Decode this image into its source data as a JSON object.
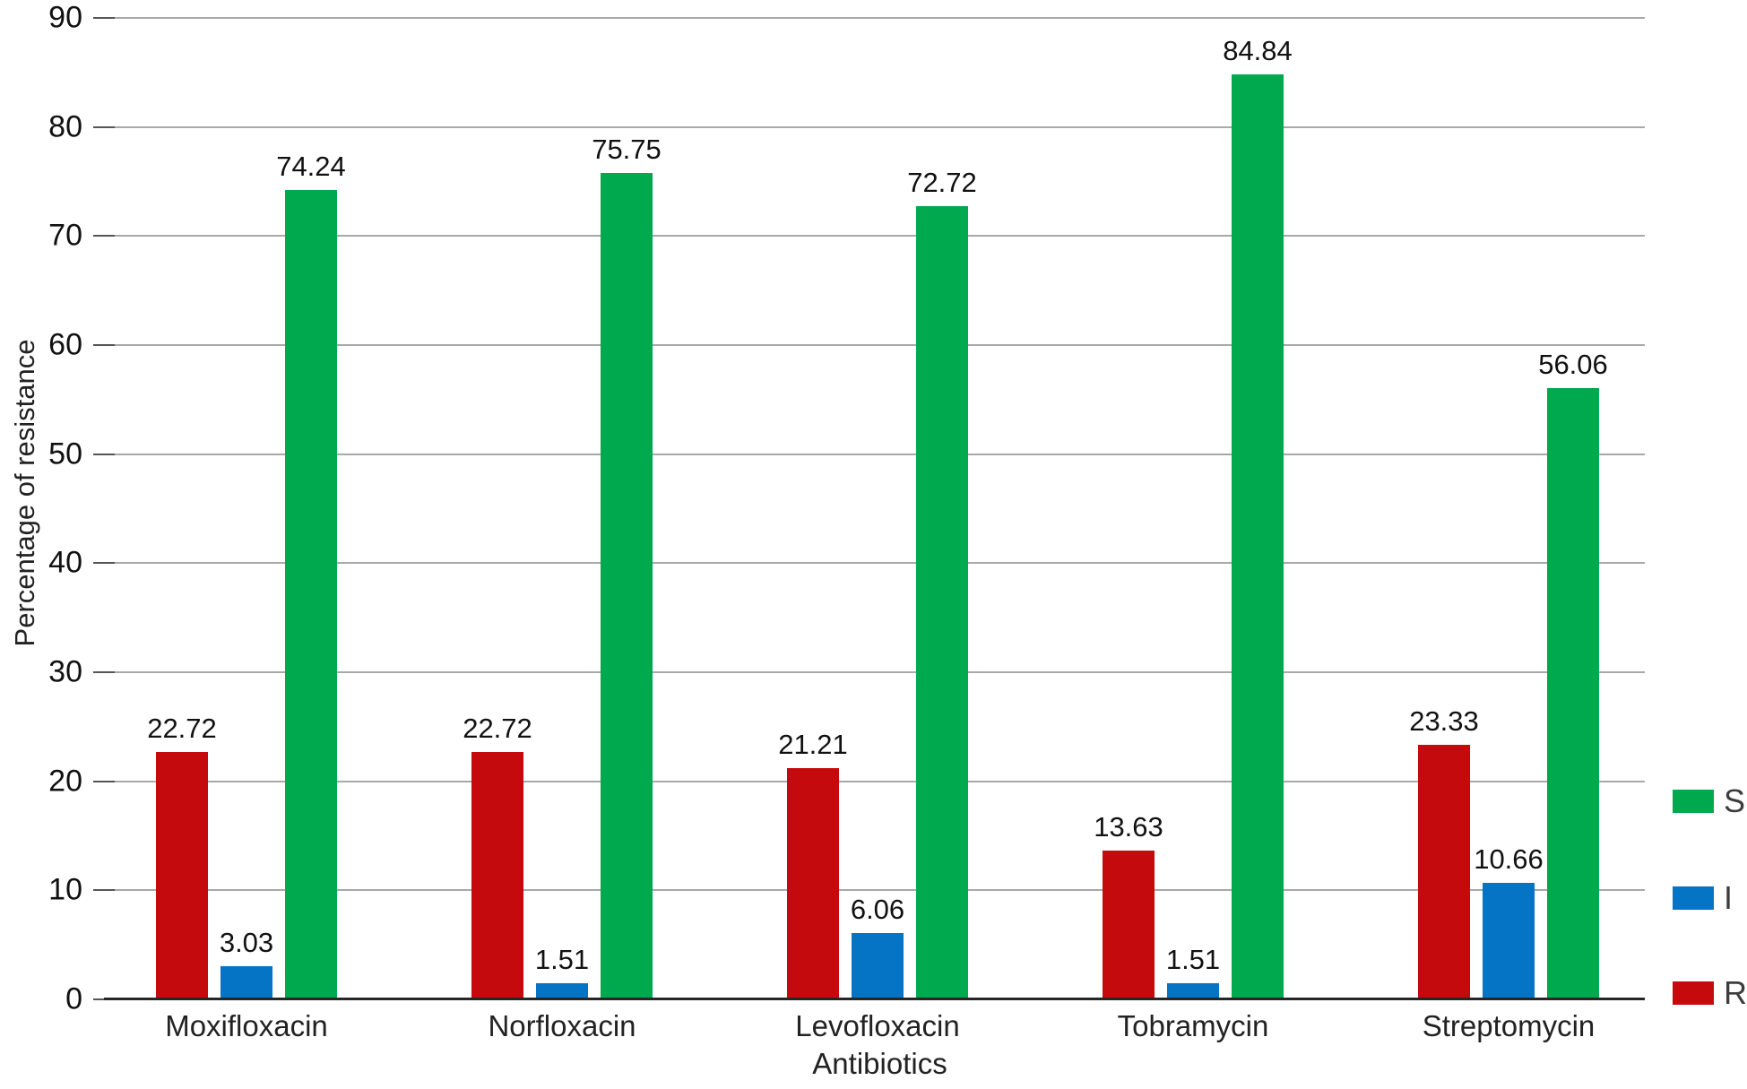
{
  "chart_data": {
    "type": "bar",
    "title": "",
    "xlabel": "Antibiotics",
    "ylabel": "Percentage of resistance",
    "ylim": [
      0,
      90
    ],
    "ytick_step": 10,
    "grid": true,
    "value_labels": true,
    "legend_position": "right",
    "categories": [
      "Moxifloxacin",
      "Norfloxacin",
      "Levofloxacin",
      "Tobramycin",
      "Streptomycin"
    ],
    "series": [
      {
        "name": "R",
        "color": "#C40A0C",
        "values": [
          22.72,
          22.72,
          21.21,
          13.63,
          23.33
        ]
      },
      {
        "name": "I",
        "color": "#0674C4",
        "values": [
          3.03,
          1.51,
          6.06,
          1.51,
          10.66
        ]
      },
      {
        "name": "S",
        "color": "#00A94E",
        "values": [
          74.24,
          75.75,
          72.72,
          84.84,
          56.06
        ]
      }
    ],
    "legend": [
      {
        "label": "S",
        "color": "#00A94E"
      },
      {
        "label": "I",
        "color": "#0674C4"
      },
      {
        "label": "R",
        "color": "#C40A0C"
      }
    ],
    "colors": {
      "gridline": "#a8a8a8",
      "axis": "#262626",
      "text": "#111111"
    }
  }
}
